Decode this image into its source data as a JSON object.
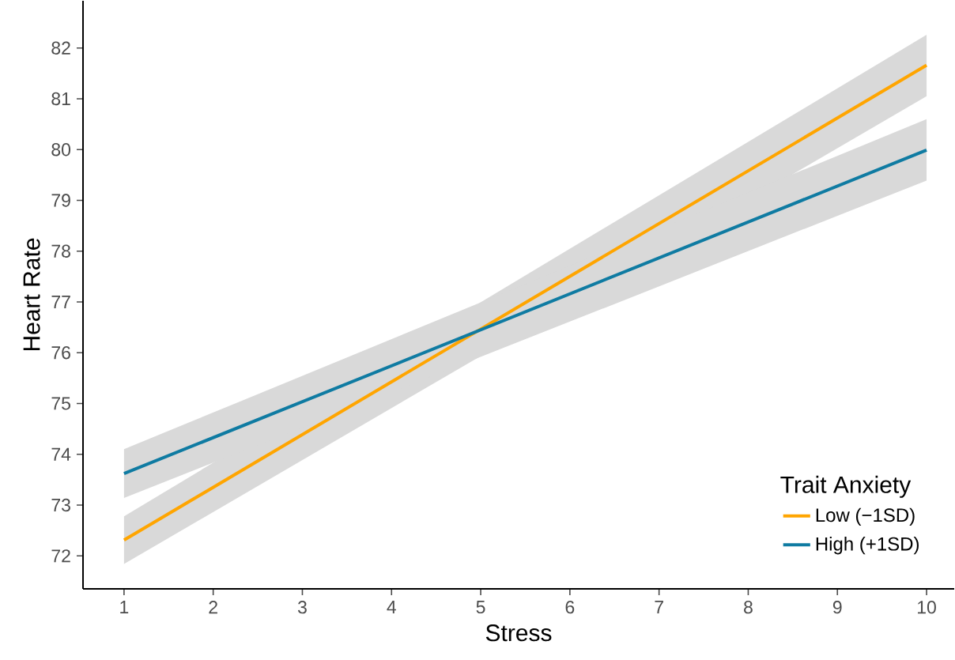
{
  "chart_data": {
    "type": "line",
    "xlabel": "Stress",
    "ylabel": "Heart Rate",
    "legend_title": "Trait Anxiety",
    "x": [
      1,
      10
    ],
    "series": [
      {
        "name": "Low (−1SD)",
        "color": "#ffa500",
        "values": [
          72.31,
          81.66
        ],
        "lower": [
          71.84,
          81.05
        ],
        "upper": [
          72.78,
          82.26
        ]
      },
      {
        "name": "High (+1SD)",
        "color": "#0f7ba2",
        "values": [
          73.62,
          79.99
        ],
        "lower": [
          73.14,
          79.39
        ],
        "upper": [
          74.1,
          80.6
        ]
      }
    ],
    "xlim": [
      0.54,
      10.31
    ],
    "ylim": [
      71.35,
      82.93
    ],
    "xticks": [
      1,
      2,
      3,
      4,
      5,
      6,
      7,
      8,
      9,
      10
    ],
    "yticks": [
      72,
      73,
      74,
      75,
      76,
      77,
      78,
      79,
      80,
      81,
      82
    ],
    "grid": false,
    "legend": "bottom right",
    "marker": "none",
    "line_style": "solid"
  }
}
